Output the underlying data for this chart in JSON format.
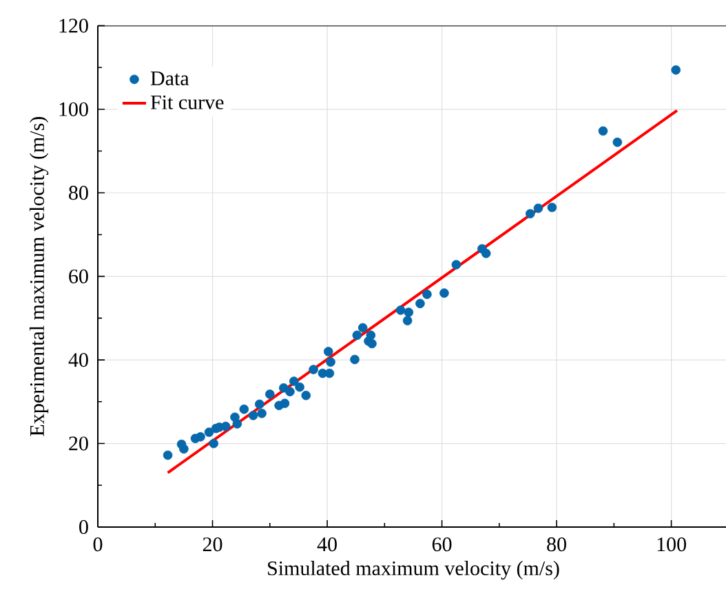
{
  "chart_data": {
    "type": "scatter",
    "xlabel": "Simulated maximum velocity (m/s)",
    "ylabel": "Experimental maximum velocity (m/s)",
    "xlim": [
      0,
      110
    ],
    "ylim": [
      0,
      120
    ],
    "xticks": [
      0,
      20,
      40,
      60,
      80,
      100
    ],
    "yticks": [
      0,
      20,
      40,
      60,
      80,
      100,
      120
    ],
    "grid": true,
    "legend": "top left",
    "series": [
      {
        "name": "Data",
        "marker": "circle",
        "color": "#0868ac",
        "x": [
          12.2,
          14.6,
          15.0,
          17.0,
          17.9,
          19.4,
          20.2,
          20.6,
          21.2,
          22.3,
          23.9,
          24.3,
          25.5,
          27.1,
          28.2,
          28.6,
          30.0,
          31.6,
          32.6,
          32.4,
          33.5,
          34.2,
          35.2,
          36.3,
          37.6,
          39.2,
          40.4,
          40.2,
          40.6,
          44.8,
          45.2,
          46.2,
          47.2,
          47.6,
          47.8,
          52.8,
          54.2,
          54.0,
          56.2,
          57.4,
          60.4,
          62.5,
          67.0,
          67.7,
          75.4,
          76.8,
          79.2,
          88.1,
          90.6,
          100.8
        ],
        "values": [
          17.2,
          19.8,
          18.7,
          21.2,
          21.6,
          22.7,
          20.0,
          23.6,
          23.9,
          24.1,
          26.3,
          24.7,
          28.2,
          26.7,
          29.4,
          27.2,
          31.8,
          29.1,
          29.6,
          33.3,
          32.4,
          34.9,
          33.5,
          31.5,
          37.7,
          36.8,
          36.8,
          42.0,
          39.5,
          40.1,
          45.9,
          47.7,
          44.5,
          45.9,
          43.9,
          51.9,
          51.4,
          49.4,
          53.5,
          55.7,
          56.0,
          62.8,
          66.6,
          65.5,
          75.0,
          76.3,
          76.5,
          94.8,
          92.1,
          109.4
        ]
      },
      {
        "name": "Fit curve",
        "type": "line",
        "marker": "none",
        "color": "#ff0000",
        "x": [
          12.2,
          101.0
        ],
        "values": [
          13.0,
          99.7
        ]
      }
    ]
  }
}
